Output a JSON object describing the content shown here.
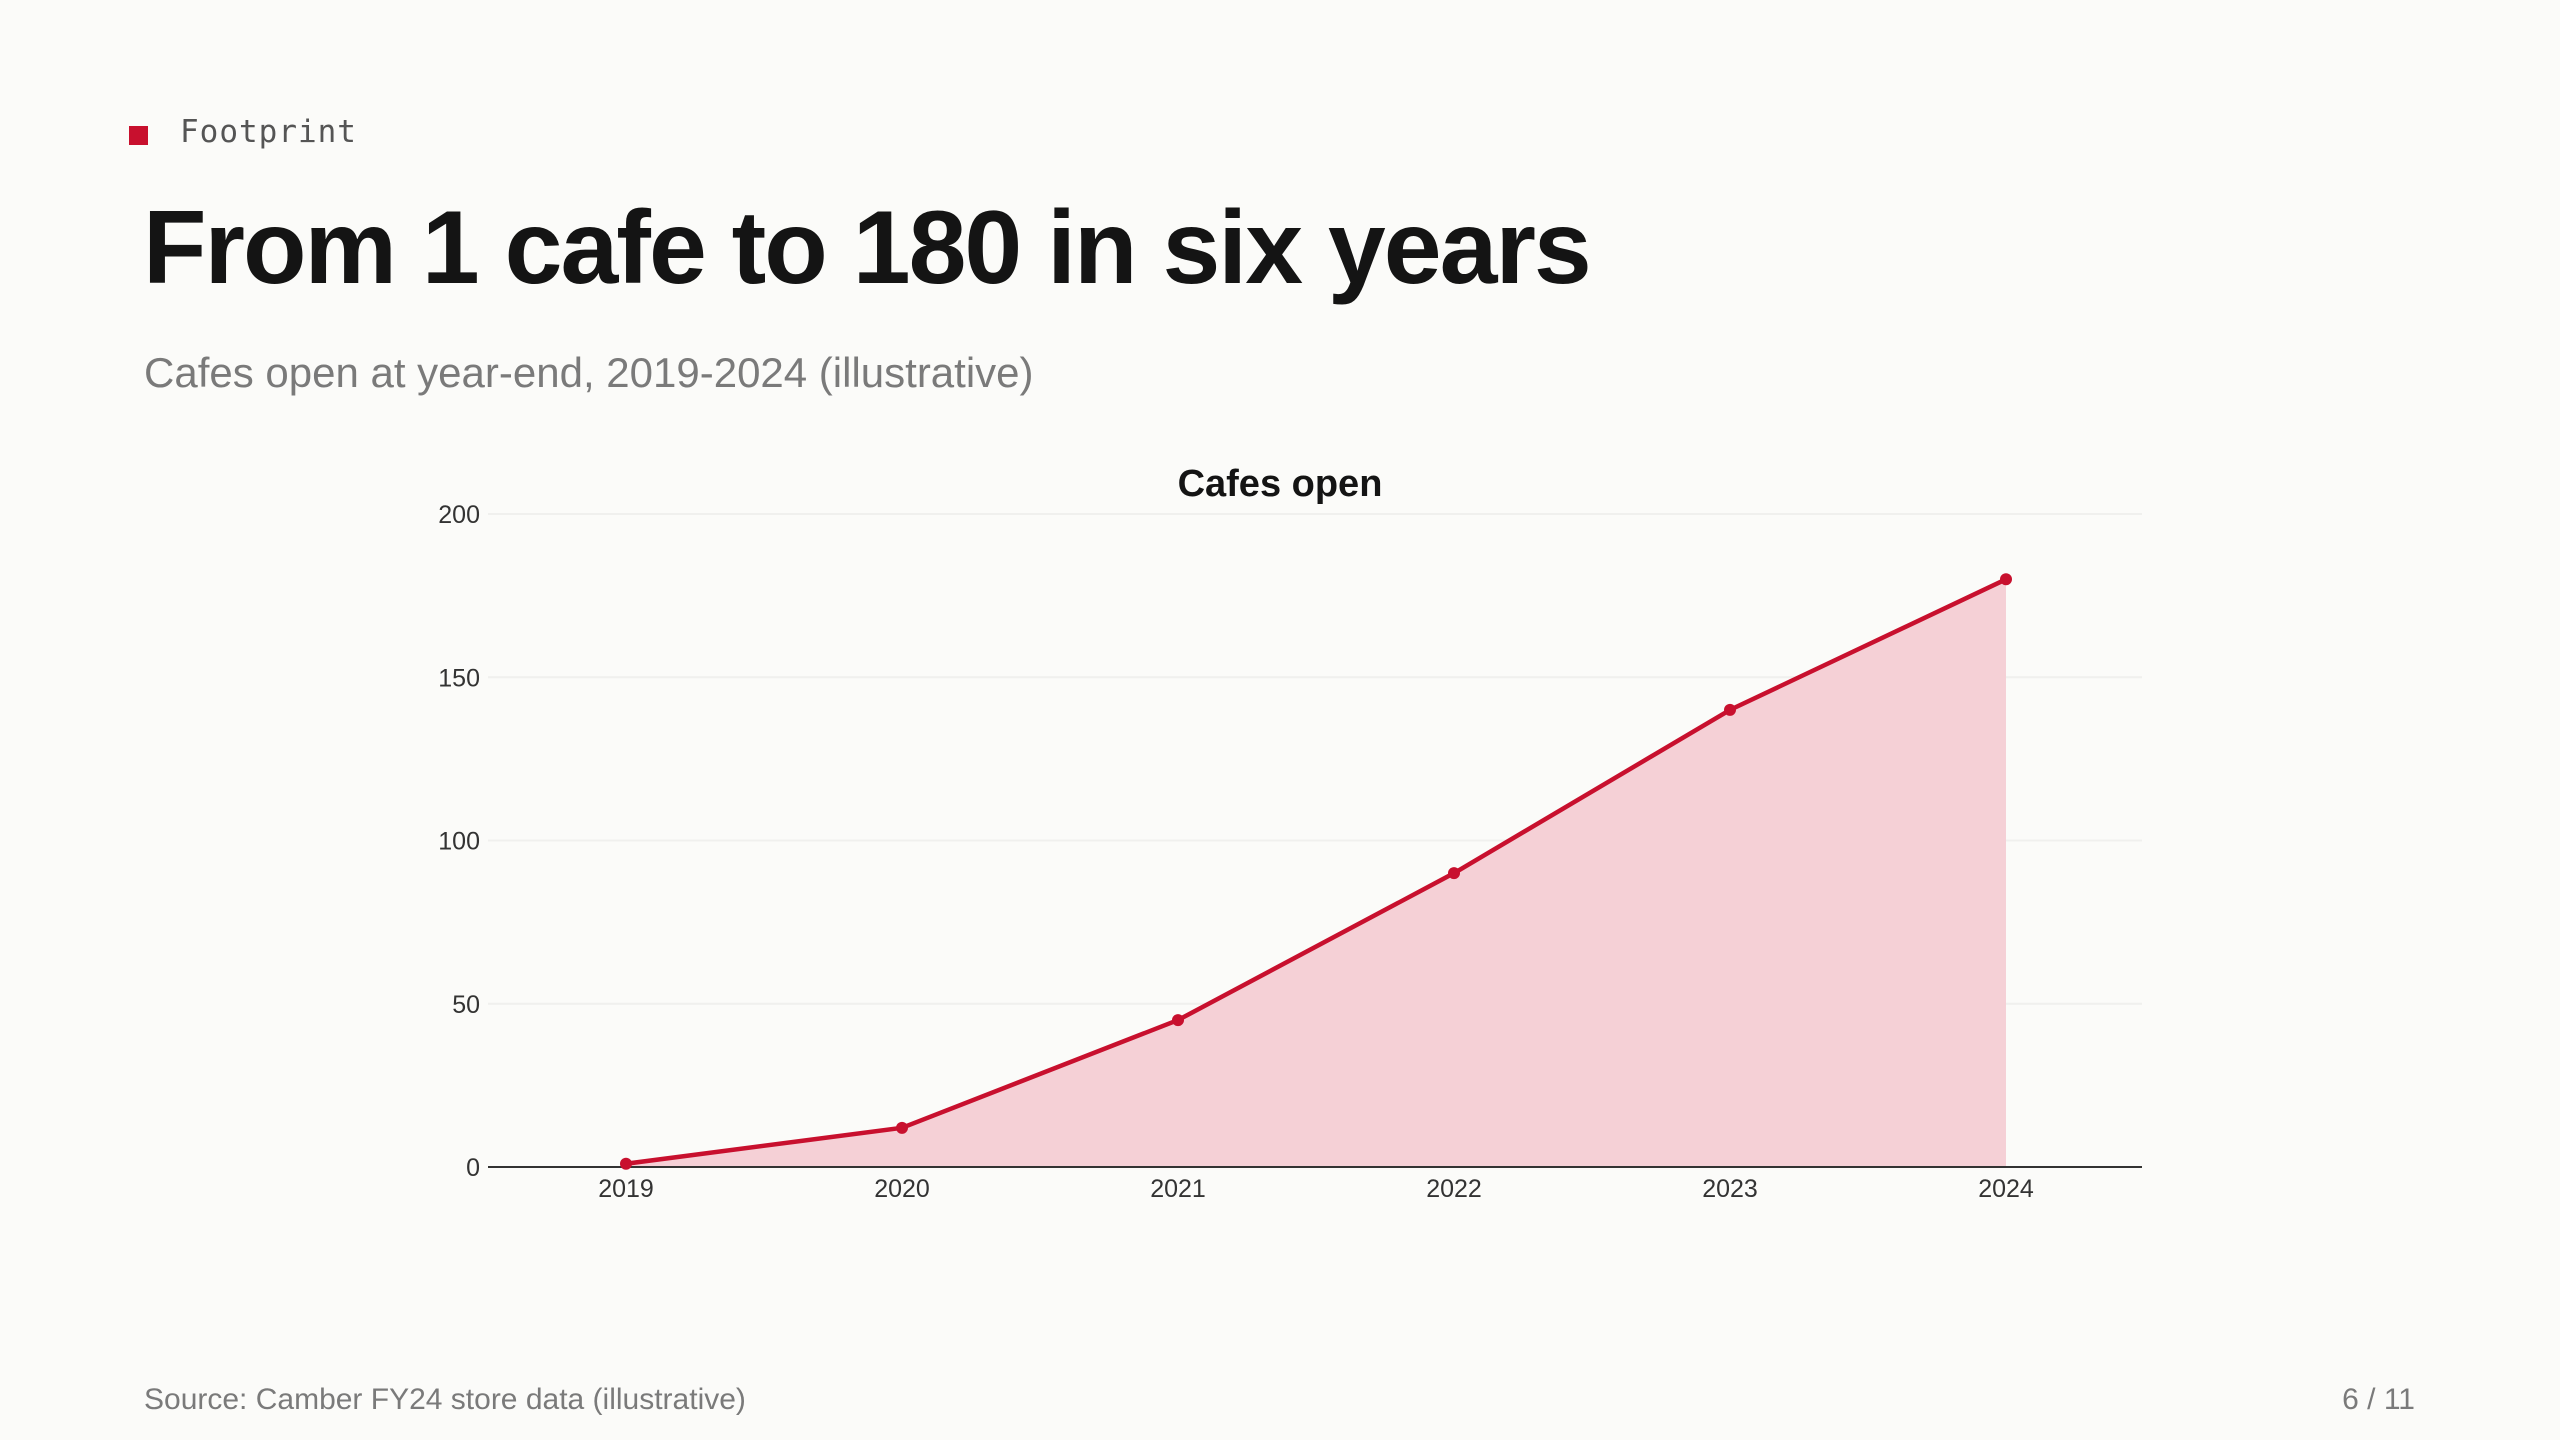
{
  "slide": {
    "eyebrow": "Footprint",
    "title": "From 1 cafe to 180 in six years",
    "subtitle": "Cafes open at year-end, 2019-2024 (illustrative)",
    "source": "Source: Camber FY24 store data (illustrative)",
    "page_indicator": "6 / 11"
  },
  "colors": {
    "accent": "#c8102e",
    "area_fill": "#f5d0d6",
    "text": "#141414",
    "muted": "#7a7a7a"
  },
  "chart_data": {
    "type": "area",
    "title": "Cafes open",
    "xlabel": "",
    "ylabel": "",
    "categories": [
      "2019",
      "2020",
      "2021",
      "2022",
      "2023",
      "2024"
    ],
    "series": [
      {
        "values": [
          1,
          12,
          45,
          90,
          140,
          180
        ]
      }
    ],
    "ylim": [
      0,
      200
    ],
    "yticks": [
      0,
      50,
      100,
      150,
      200
    ],
    "grid": true,
    "markers": true,
    "legend": "none"
  }
}
